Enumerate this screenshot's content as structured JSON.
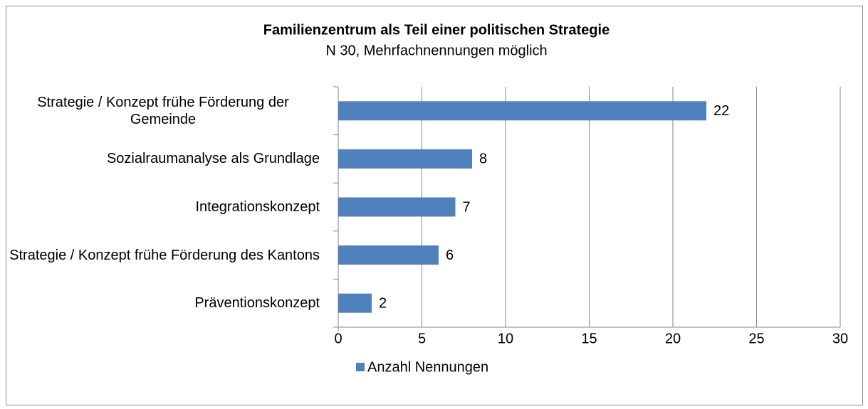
{
  "chart_data": {
    "type": "bar",
    "orientation": "horizontal",
    "title": "Familienzentrum als Teil einer politischen Strategie",
    "subtitle": "N 30, Mehrfachnennungen möglich",
    "categories": [
      "Strategie / Konzept frühe Förderung der Gemeinde",
      "Sozialraumanalyse als Grundlage",
      "Integrationskonzept",
      "Strategie / Konzept frühe Förderung des Kantons",
      "Präventionskonzept"
    ],
    "series": [
      {
        "name": "Anzahl Nennungen",
        "color": "#4f81bd",
        "values": [
          22,
          8,
          7,
          6,
          2
        ]
      }
    ],
    "xlim": [
      0,
      30
    ],
    "xticks": [
      0,
      5,
      10,
      15,
      20,
      25,
      30
    ],
    "grid": true,
    "legend": "bottom"
  }
}
